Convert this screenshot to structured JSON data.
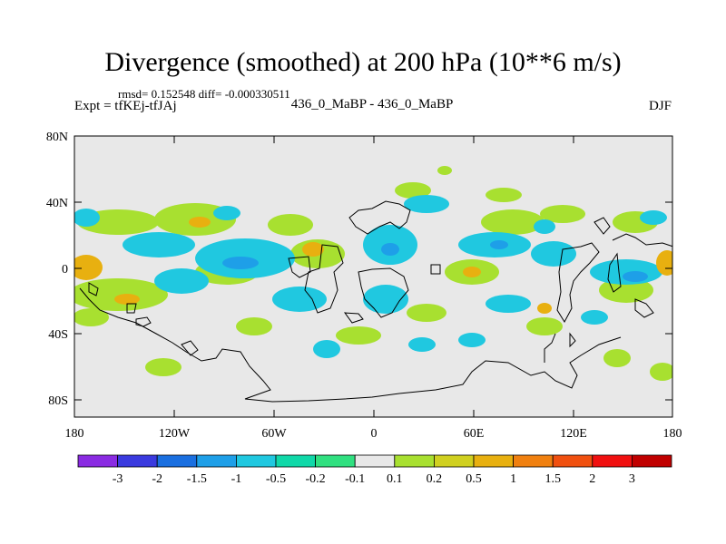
{
  "title": "Divergence (smoothed) at 200 hPa (10**6 m/s)",
  "stats": "rmsd= 0.152548 diff= -0.000330511",
  "left_label": "Expt = tfKEj-tfJAj",
  "center_label": "436_0_MaBP - 436_0_MaBP",
  "right_label": "DJF",
  "axes": {
    "lat_ticks": [
      "80N",
      "40N",
      "0",
      "40S",
      "80S"
    ],
    "lon_ticks": [
      "180",
      "120W",
      "60W",
      "0",
      "60E",
      "120E",
      "180"
    ]
  },
  "colorbar": {
    "labels": [
      "-3",
      "-2",
      "-1.5",
      "-1",
      "-0.5",
      "-0.2",
      "-0.1",
      "0.1",
      "0.2",
      "0.5",
      "1",
      "1.5",
      "2",
      "3"
    ],
    "colors": [
      "#8a2be2",
      "#3a3adf",
      "#1a6fe0",
      "#1e9fe8",
      "#20c8e0",
      "#10d8a8",
      "#30e080",
      "#e8e8e8",
      "#a8e030",
      "#d0d020",
      "#e8b010",
      "#f08010",
      "#f05010",
      "#f01010",
      "#c00000"
    ]
  },
  "colors": {
    "background_field": "#e8e8e8",
    "neg_weak": "#30e080",
    "neg_mid": "#20c8e0",
    "neg_strong": "#1e9fe8",
    "pos_weak": "#a8e030",
    "pos_mid": "#d0d020",
    "pos_strong": "#e8b010"
  }
}
